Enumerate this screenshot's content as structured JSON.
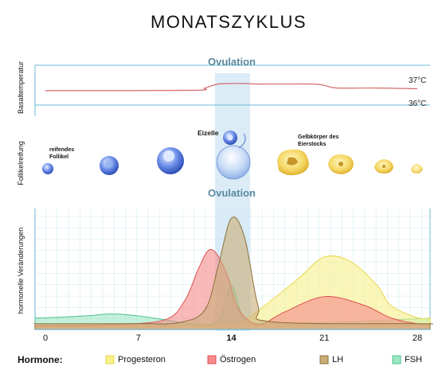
{
  "title": "MONATSZYKLUS",
  "ovulation_label": "Ovulation",
  "temperature_panel": {
    "ylabel": "Basaltemperatur",
    "ref_high": "37°C",
    "ref_low": "36°C"
  },
  "follicle_panel": {
    "ylabel": "Follikelreifung",
    "label_follicle": [
      "reifendes",
      "Follikel"
    ],
    "label_egg": "Eizelle",
    "label_corpus_luteum": [
      "Gelbkörper des",
      "Eierstocks"
    ]
  },
  "hormone_panel": {
    "ylabel": "hormonelle Veränderungen"
  },
  "legend": {
    "title": "Hormone:",
    "items": [
      {
        "name": "Progesteron",
        "color": "#f7f08a",
        "border": "#e8d84a"
      },
      {
        "name": "Östrogen",
        "color": "#f58a8a",
        "border": "#e05050"
      },
      {
        "name": "LH",
        "color": "#c9ad78",
        "border": "#8c6f3a"
      },
      {
        "name": "FSH",
        "color": "#9ee8c4",
        "border": "#4cc08c"
      }
    ]
  },
  "chart_data": {
    "type": "area",
    "x_ticks": [
      0,
      7,
      14,
      21,
      28
    ],
    "xlim": [
      0,
      28
    ],
    "ovulation_day": 14,
    "temperature": {
      "x": [
        0,
        11,
        12,
        13,
        14,
        15,
        16,
        20,
        21,
        22,
        25,
        28
      ],
      "y": [
        36.55,
        36.56,
        36.65,
        36.8,
        36.82,
        36.82,
        36.8,
        36.8,
        36.75,
        36.65,
        36.65,
        36.62
      ]
    },
    "series": [
      {
        "name": "FSH",
        "x": [
          0,
          3,
          5,
          7,
          9,
          11,
          13,
          14,
          15,
          17,
          21,
          28
        ],
        "y": [
          12,
          14,
          16,
          14,
          10,
          6,
          9,
          45,
          10,
          7,
          7,
          11
        ]
      },
      {
        "name": "Progesteron",
        "x": [
          0,
          7,
          13,
          14,
          15,
          17,
          19,
          21,
          23,
          25,
          26,
          28
        ],
        "y": [
          3,
          3,
          4,
          5,
          9,
          30,
          52,
          75,
          70,
          45,
          25,
          12
        ]
      },
      {
        "name": "Östrogen",
        "x": [
          0,
          5,
          9,
          10.5,
          11.5,
          12.3,
          13,
          13.8,
          14.5,
          16,
          18,
          21,
          24,
          26,
          28
        ],
        "y": [
          4,
          5,
          10,
          30,
          62,
          82,
          76,
          52,
          22,
          5,
          18,
          34,
          25,
          12,
          6
        ]
      },
      {
        "name": "LH",
        "x": [
          0,
          7,
          10,
          12,
          13,
          14,
          15,
          16,
          17,
          28
        ],
        "y": [
          6,
          6,
          7,
          20,
          65,
          115,
          95,
          25,
          8,
          6
        ]
      }
    ],
    "ylim": [
      0,
      125
    ]
  }
}
